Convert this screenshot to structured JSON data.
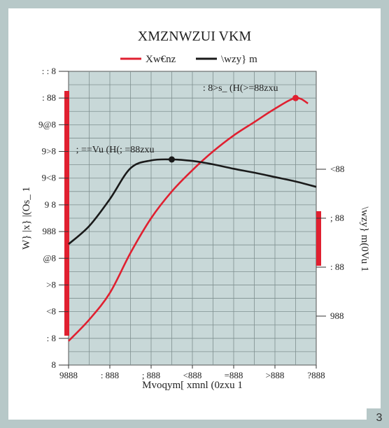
{
  "page": {
    "badge": "3"
  },
  "colors": {
    "background": "#b7c8c8",
    "plot_bg": "#c8d8d8",
    "series_a": "#e02030",
    "series_b": "#1a1a1a",
    "axis_bar": "#e02030"
  },
  "chart_data": {
    "type": "line",
    "title": "XMZNWZUI VKM",
    "xlabel": "Mvoqym[ xmnl (0zxu 1",
    "ylabel_left": "W} |x} |(Os_ 1",
    "ylabel_right": "\\wzy} m(0Vu 1",
    "x_ticks": [
      "9888",
      ": 888",
      "; 888",
      "<888",
      "=888",
      ">888",
      "?888"
    ],
    "y_ticks_left": [
      "8",
      ": 8",
      "<8",
      ">8",
      "@8",
      "988",
      "9 8",
      "9<8",
      "9>8",
      "9@8",
      ": 88",
      ": : 8"
    ],
    "y_ticks_right": [
      "988",
      ": 88",
      "; 88",
      "<88"
    ],
    "xlim": [
      0,
      6
    ],
    "ylim_left": [
      0,
      11
    ],
    "ylim_right": [
      0,
      6
    ],
    "grid": true,
    "legend_placement": "top-center",
    "series": [
      {
        "name": "Xw€nz",
        "axis": "left",
        "color": "#e02030",
        "x": [
          0,
          0.5,
          1,
          1.5,
          2,
          2.5,
          3,
          3.5,
          4,
          4.5,
          5,
          5.5,
          5.8
        ],
        "y": [
          0.9,
          1.7,
          2.7,
          4.2,
          5.5,
          6.5,
          7.3,
          8.0,
          8.6,
          9.1,
          9.6,
          10.0,
          9.8
        ]
      },
      {
        "name": "\\wzy} m",
        "axis": "right",
        "color": "#1a1a1a",
        "x": [
          0,
          0.5,
          1,
          1.5,
          2,
          2.5,
          3,
          3.5,
          4,
          4.5,
          5,
          5.5,
          6
        ],
        "y": [
          2.47,
          2.84,
          3.39,
          4.02,
          4.18,
          4.2,
          4.17,
          4.1,
          4.01,
          3.93,
          3.84,
          3.75,
          3.64
        ]
      }
    ],
    "annotations": [
      {
        "text": ": 8>s_ (H(>=88zxu",
        "series": 0,
        "x": 5.5,
        "y": 10.0
      },
      {
        "text": "; ==Vu (H(; =88zxu",
        "series": 1,
        "x": 2.5,
        "y": 4.2
      }
    ]
  }
}
